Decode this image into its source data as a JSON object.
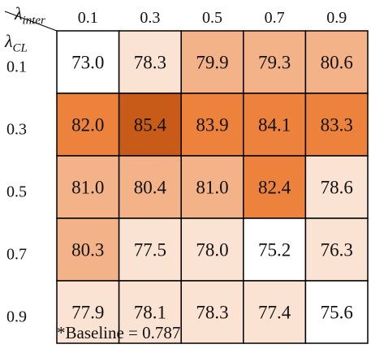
{
  "chart_data": {
    "type": "heatmap",
    "x_axis_symbol": "λ",
    "x_axis_subscript": "inter",
    "y_axis_symbol": "λ",
    "y_axis_subscript": "CL",
    "x_categories": [
      "0.1",
      "0.3",
      "0.5",
      "0.7",
      "0.9"
    ],
    "y_categories": [
      "0.1",
      "0.3",
      "0.5",
      "0.7",
      "0.9"
    ],
    "values": [
      [
        73.0,
        78.3,
        79.9,
        79.3,
        80.6
      ],
      [
        82.0,
        85.4,
        83.9,
        84.1,
        83.3
      ],
      [
        81.0,
        80.4,
        81.0,
        82.4,
        78.6
      ],
      [
        80.3,
        77.5,
        78.0,
        75.2,
        76.3
      ],
      [
        77.9,
        78.1,
        78.3,
        77.4,
        75.6
      ]
    ],
    "value_labels": [
      [
        "73.0",
        "78.3",
        "79.9",
        "79.3",
        "80.6"
      ],
      [
        "82.0",
        "85.4",
        "83.9",
        "84.1",
        "83.3"
      ],
      [
        "81.0",
        "80.4",
        "81.0",
        "82.4",
        "78.6"
      ],
      [
        "80.3",
        "77.5",
        "78.0",
        "75.2",
        "76.3"
      ],
      [
        "77.9",
        "78.1",
        "78.3",
        "77.4",
        "75.6"
      ]
    ],
    "colors": {
      "white": "#ffffff",
      "light": "#fbe3d4",
      "medium": "#f3b287",
      "strong": "#ec823c",
      "darkest": "#c75b17",
      "border": "#000000"
    },
    "footnote": "*Baseline = 0.787"
  }
}
